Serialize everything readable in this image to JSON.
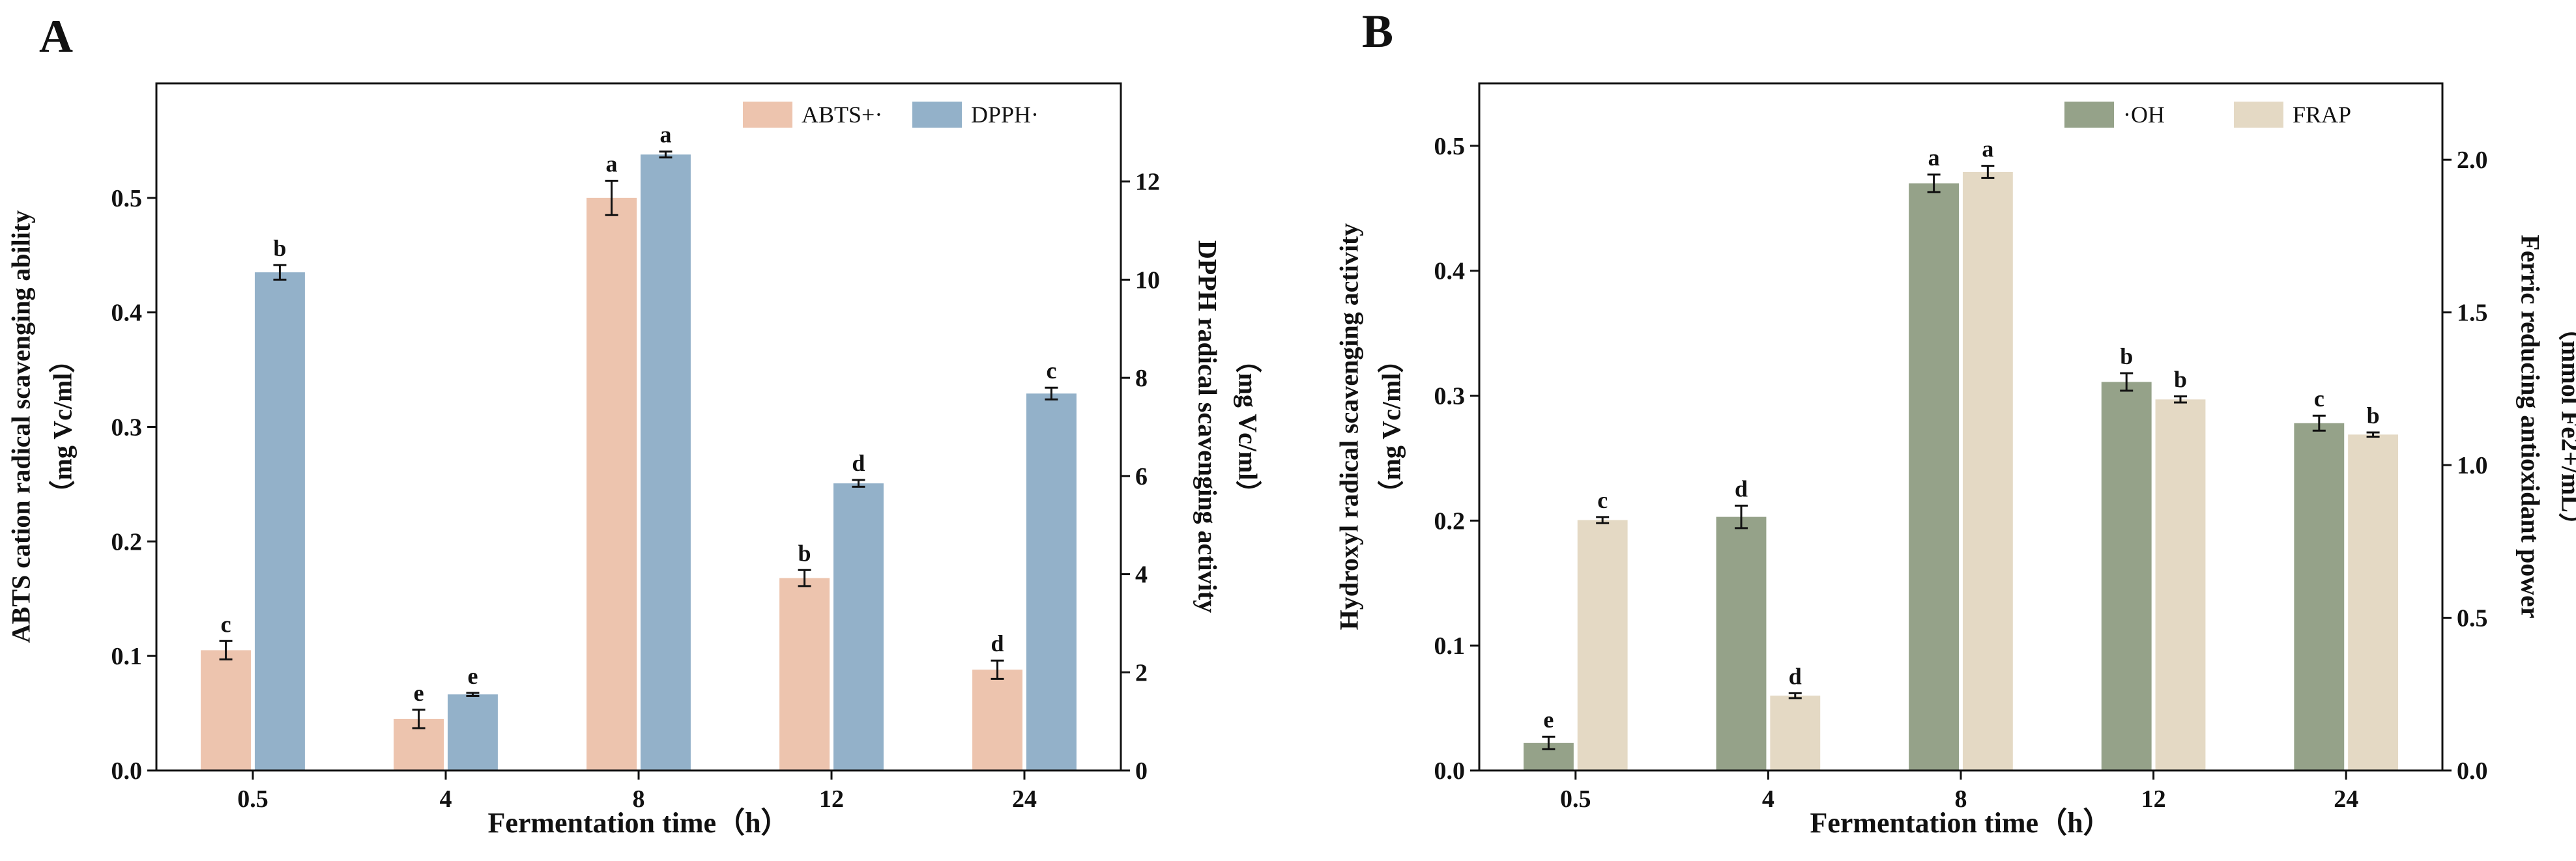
{
  "chart_data": [
    {
      "panel": "A",
      "type": "bar",
      "xlabel": "Fermentation time（h）",
      "ylabel_left": "ABTS cation radical scavenging ability",
      "ylabel_left_unit": "（mg Vc/ml）",
      "ylabel_right": "DPPH radical scavenging activity",
      "ylabel_right_unit": "（mg Vc/ml）",
      "categories": [
        "0.5",
        "4",
        "8",
        "12",
        "24"
      ],
      "ylim_left": [
        0,
        0.6
      ],
      "yticks_left": [
        "0.0",
        "0.1",
        "0.2",
        "0.3",
        "0.4",
        "0.5"
      ],
      "ylim_right": [
        0,
        14
      ],
      "yticks_right": [
        "0",
        "2",
        "4",
        "6",
        "8",
        "10",
        "12"
      ],
      "legend_position": "top-right",
      "series": [
        {
          "name": "ABTS+·",
          "axis": "left",
          "color": "#EDC4AE",
          "values": [
            0.105,
            0.045,
            0.5,
            0.168,
            0.088
          ],
          "errors": [
            0.008,
            0.008,
            0.015,
            0.007,
            0.008
          ],
          "letters": [
            "c",
            "e",
            "a",
            "b",
            "d"
          ]
        },
        {
          "name": "DPPH·",
          "axis": "right",
          "color": "#93B1C9",
          "values": [
            10.15,
            1.55,
            12.55,
            5.85,
            7.68
          ],
          "errors": [
            0.15,
            0.03,
            0.06,
            0.07,
            0.12
          ],
          "letters": [
            "b",
            "e",
            "a",
            "d",
            "c"
          ]
        }
      ]
    },
    {
      "panel": "B",
      "type": "bar",
      "xlabel": "Fermentation time（h）",
      "ylabel_left": "Hydroxyl radical scavenging activity",
      "ylabel_left_unit": "（mg Vc/ml）",
      "ylabel_right": "Ferric reducing antioxidant power",
      "ylabel_right_unit": "（mmol Fe2+/mL）",
      "categories": [
        "0.5",
        "4",
        "8",
        "12",
        "24"
      ],
      "ylim_left": [
        0,
        0.55
      ],
      "yticks_left": [
        "0.0",
        "0.1",
        "0.2",
        "0.3",
        "0.4",
        "0.5"
      ],
      "ylim_right": [
        0,
        2.25
      ],
      "yticks_right": [
        "0.0",
        "0.5",
        "1.0",
        "1.5",
        "2.0"
      ],
      "legend_position": "top-right",
      "series": [
        {
          "name": "·OH",
          "axis": "left",
          "color": "#95A289",
          "values": [
            0.022,
            0.203,
            0.47,
            0.311,
            0.278
          ],
          "errors": [
            0.005,
            0.009,
            0.007,
            0.007,
            0.006
          ],
          "letters": [
            "e",
            "d",
            "a",
            "b",
            "c"
          ]
        },
        {
          "name": "FRAP",
          "axis": "right",
          "color": "#E4D9C4",
          "values": [
            0.82,
            0.245,
            1.96,
            1.215,
            1.1
          ],
          "errors": [
            0.01,
            0.008,
            0.02,
            0.01,
            0.007
          ],
          "letters": [
            "c",
            "d",
            "a",
            "b",
            "b"
          ]
        }
      ]
    }
  ]
}
